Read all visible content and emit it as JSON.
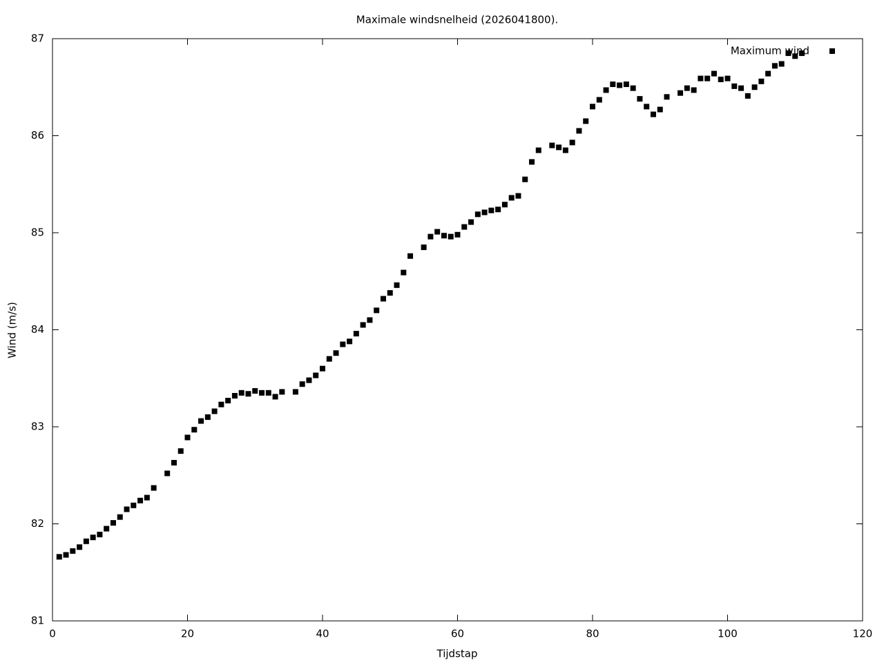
{
  "chart_data": {
    "type": "scatter",
    "title": "Maximale windsnelheid (2026041800).",
    "x_label": "Tijdstap",
    "y_label": "Wind (m/s)",
    "xlim": [
      0,
      120
    ],
    "xticks": [
      0,
      20,
      40,
      60,
      80,
      100,
      120
    ],
    "ylim": [
      81,
      87
    ],
    "yticks": [
      81,
      82,
      83,
      84,
      85,
      86,
      87
    ],
    "grid": false,
    "legend": "top-right",
    "series": [
      {
        "name": "Maximum wind",
        "color": "#000000",
        "x": [
          1,
          2,
          3,
          4,
          5,
          6,
          7,
          8,
          9,
          10,
          11,
          12,
          13,
          14,
          15,
          17,
          18,
          19,
          20,
          21,
          22,
          23,
          24,
          25,
          26,
          27,
          28,
          29,
          30,
          31,
          32,
          33,
          34,
          36,
          37,
          38,
          39,
          40,
          41,
          42,
          43,
          44,
          45,
          46,
          47,
          48,
          49,
          50,
          51,
          52,
          53,
          55,
          56,
          57,
          58,
          59,
          60,
          61,
          62,
          63,
          64,
          65,
          66,
          67,
          68,
          69,
          70,
          71,
          72,
          74,
          75,
          76,
          77,
          78,
          79,
          80,
          81,
          82,
          83,
          84,
          85,
          86,
          87,
          88,
          89,
          90,
          91,
          93,
          94,
          95,
          96,
          97,
          98,
          99,
          100,
          101,
          102,
          103,
          104,
          105,
          106,
          107,
          108,
          109,
          110,
          111
        ],
        "values": [
          81.66,
          81.68,
          81.72,
          81.76,
          81.82,
          81.86,
          81.89,
          81.95,
          82.01,
          82.07,
          82.15,
          82.19,
          82.24,
          82.27,
          82.37,
          82.52,
          82.63,
          82.75,
          82.89,
          82.97,
          83.06,
          83.1,
          83.16,
          83.23,
          83.27,
          83.32,
          83.35,
          83.34,
          83.37,
          83.35,
          83.35,
          83.31,
          83.36,
          83.36,
          83.44,
          83.48,
          83.53,
          83.6,
          83.7,
          83.76,
          83.85,
          83.88,
          83.96,
          84.05,
          84.1,
          84.2,
          84.32,
          84.38,
          84.46,
          84.59,
          84.76,
          84.85,
          84.96,
          85.01,
          84.97,
          84.96,
          84.98,
          85.06,
          85.11,
          85.19,
          85.21,
          85.23,
          85.24,
          85.29,
          85.36,
          85.38,
          85.55,
          85.73,
          85.85,
          85.9,
          85.88,
          85.85,
          85.93,
          86.05,
          86.15,
          86.3,
          86.37,
          86.47,
          86.53,
          86.52,
          86.53,
          86.49,
          86.38,
          86.3,
          86.22,
          86.27,
          86.4,
          86.44,
          86.49,
          86.47,
          86.59,
          86.59,
          86.64,
          86.58,
          86.59,
          86.51,
          86.49,
          86.41,
          86.5,
          86.56,
          86.64,
          86.72,
          86.74,
          86.85,
          86.82,
          86.85
        ]
      }
    ]
  }
}
